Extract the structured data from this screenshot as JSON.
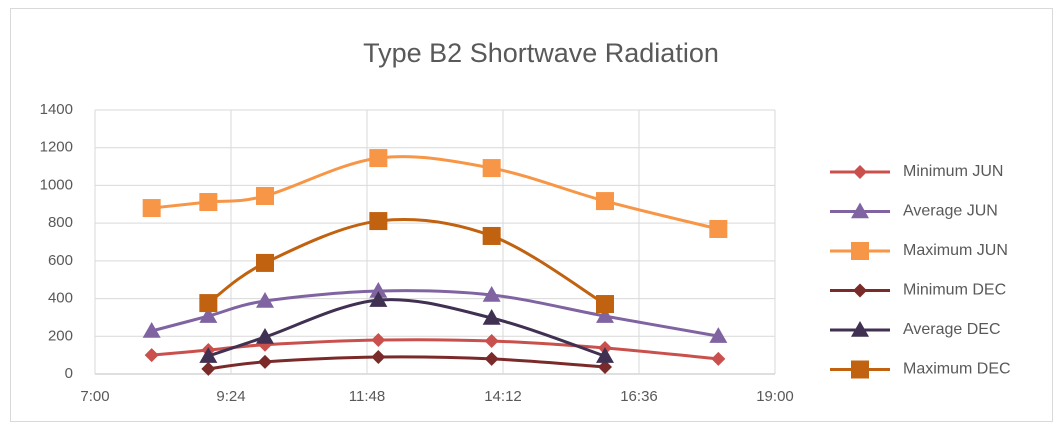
{
  "chart_data": {
    "type": "line",
    "title": "Type B2 Shortwave Radiation",
    "x": [
      8,
      9,
      10,
      12,
      14,
      16,
      18
    ],
    "xlim": [
      7,
      19
    ],
    "xticks": [
      {
        "value": 7,
        "label": "7:00"
      },
      {
        "value": 9.4,
        "label": "9:24"
      },
      {
        "value": 11.8,
        "label": "11:48"
      },
      {
        "value": 14.2,
        "label": "14:12"
      },
      {
        "value": 16.6,
        "label": "16:36"
      },
      {
        "value": 19,
        "label": "19:00"
      }
    ],
    "ylim": [
      0,
      1400
    ],
    "yticks": [
      0,
      200,
      400,
      600,
      800,
      1000,
      1200,
      1400
    ],
    "grid": true,
    "smooth": true,
    "legend": "right",
    "series": [
      {
        "name": "Minimum JUN",
        "color": "#c9504c",
        "marker": "diamond",
        "values": [
          100,
          127,
          155,
          180,
          175,
          138,
          80
        ]
      },
      {
        "name": "Average JUN",
        "color": "#8064a2",
        "marker": "triangle",
        "values": [
          228,
          307,
          387,
          440,
          419,
          307,
          201
        ]
      },
      {
        "name": "Maximum JUN",
        "color": "#f79646",
        "marker": "square",
        "values": [
          880,
          912,
          944,
          1145,
          1092,
          917,
          769
        ]
      },
      {
        "name": "Minimum DEC",
        "color": "#7b2a2a",
        "marker": "diamond",
        "values": [
          null,
          27,
          64,
          90,
          80,
          37,
          null
        ]
      },
      {
        "name": "Average DEC",
        "color": "#403152",
        "marker": "triangle",
        "values": [
          null,
          95,
          196,
          392,
          297,
          95,
          null
        ]
      },
      {
        "name": "Maximum DEC",
        "color": "#c0620f",
        "marker": "square",
        "values": [
          null,
          376,
          589,
          811,
          732,
          371,
          null
        ]
      }
    ]
  }
}
